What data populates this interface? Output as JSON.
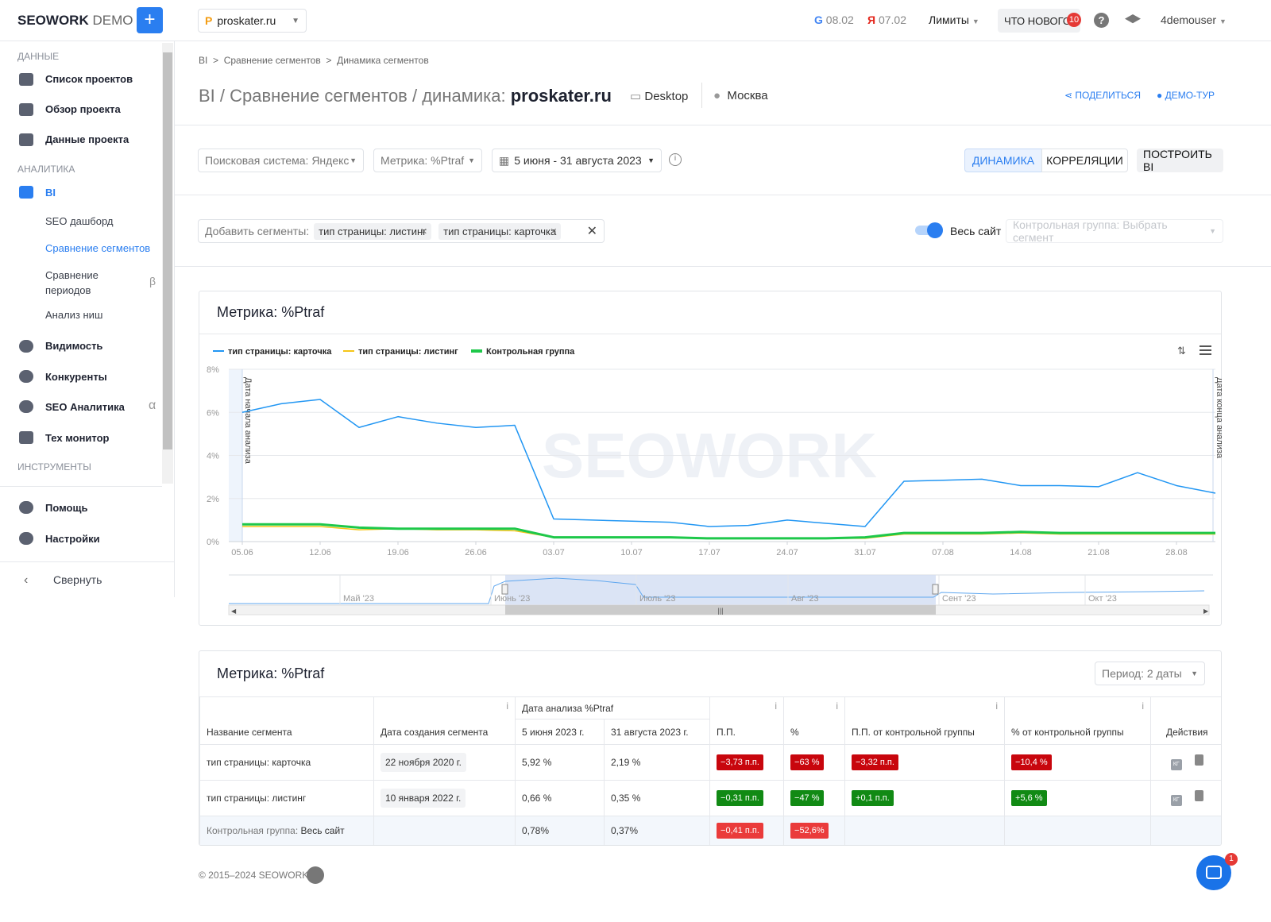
{
  "topbar": {
    "logo": "SEOWORK",
    "logo_suffix": "DEMO",
    "project": "proskater.ru",
    "google_date": "08.02",
    "yandex_date": "07.02",
    "limits": "Лимиты",
    "whats_new": "ЧТО НОВОГО",
    "whats_new_badge": "10",
    "user": "4demouser"
  },
  "sidebar": {
    "data_title": "ДАННЫЕ",
    "projects": "Список проектов",
    "overview": "Обзор проекта",
    "project_data": "Данные проекта",
    "analytics_title": "АНАЛИТИКА",
    "bi": "BI",
    "bi_sub": [
      "SEO дашборд",
      "Сравнение сегментов",
      "Сравнение периодов",
      "Анализ ниш"
    ],
    "beta": "β",
    "visibility": "Видимость",
    "competitors": "Конкуренты",
    "seo_analytics": "SEO Аналитика",
    "alpha": "α",
    "tech": "Тех монитор",
    "tools_title": "ИНСТРУМЕНТЫ",
    "help": "Помощь",
    "settings": "Настройки",
    "collapse": "Свернуть"
  },
  "breadcrumbs": [
    "BI",
    "Сравнение сегментов",
    "Динамика сегментов"
  ],
  "header": {
    "title": "BI / Сравнение сегментов / динамика:",
    "project": "proskater.ru",
    "device": "Desktop",
    "region": "Москва",
    "share": "ПОДЕЛИТЬСЯ",
    "tour": "ДЕМО-ТУР"
  },
  "filters": {
    "engine": "Поисковая система: Яндекс",
    "metric": "Метрика: %Ptraf",
    "period": "5 июня - 31 августа 2023",
    "tab_dynamics": "ДИНАМИКА",
    "tab_correlations": "КОРРЕЛЯЦИИ",
    "build": "ПОСТРОИТЬ BI"
  },
  "segments": {
    "label": "Добавить сегменты:",
    "chips": [
      "тип страницы: листинг",
      "тип страницы: карточка"
    ],
    "whole_site": "Весь сайт",
    "control_placeholder": "Контрольная группа: Выбрать сегмент"
  },
  "chart_card": {
    "title": "Метрика: %Ptraf"
  },
  "chart_data": {
    "type": "line",
    "categories": [
      "05.06",
      null,
      "12.06",
      null,
      "19.06",
      null,
      "26.06",
      null,
      "03.07",
      null,
      "10.07",
      null,
      "17.07",
      null,
      "24.07",
      null,
      "31.07",
      null,
      "07.08",
      null,
      "14.08",
      null,
      "21.08",
      null,
      "28.08",
      null
    ],
    "series": [
      {
        "name": "тип страницы: карточка",
        "color": "#2196f3",
        "values": [
          6.0,
          6.4,
          6.6,
          5.3,
          5.8,
          5.5,
          5.3,
          5.4,
          1.05,
          1.0,
          0.95,
          0.9,
          0.7,
          0.75,
          1.0,
          0.85,
          0.7,
          2.8,
          2.85,
          2.9,
          2.6,
          2.6,
          2.55,
          3.2,
          2.6,
          2.25
        ]
      },
      {
        "name": "тип страницы: листинг",
        "color": "#f5c518",
        "values": [
          0.7,
          0.7,
          0.7,
          0.55,
          0.6,
          0.55,
          0.55,
          0.5,
          0.2,
          0.2,
          0.2,
          0.2,
          0.15,
          0.15,
          0.15,
          0.15,
          0.15,
          0.35,
          0.35,
          0.35,
          0.4,
          0.35,
          0.35,
          0.35,
          0.35,
          0.35
        ]
      },
      {
        "name": "Контрольная группа",
        "color": "#1ec84a",
        "values": [
          0.8,
          0.8,
          0.8,
          0.65,
          0.6,
          0.6,
          0.6,
          0.6,
          0.2,
          0.2,
          0.2,
          0.2,
          0.15,
          0.15,
          0.15,
          0.15,
          0.2,
          0.4,
          0.4,
          0.4,
          0.45,
          0.4,
          0.4,
          0.4,
          0.4,
          0.4
        ]
      }
    ],
    "ylim": [
      0,
      8
    ],
    "yticks": [
      {
        "value": 0,
        "label": "0%"
      },
      {
        "value": 2,
        "label": "2%"
      },
      {
        "value": 4,
        "label": "4%"
      },
      {
        "value": 6,
        "label": "6%"
      },
      {
        "value": 8,
        "label": "8%"
      }
    ],
    "grid": true,
    "annotations": [
      "Дата начала анализа",
      "Дата конца анализа"
    ],
    "watermark": "SEOWORK",
    "navigator_labels": [
      "Май '23",
      "Июнь '23",
      "Июль '23",
      "Авг '23",
      "Сент '23",
      "Окт '23"
    ]
  },
  "table_card": {
    "title": "Метрика: %Ptraf",
    "period": "Период: 2 даты",
    "columns": {
      "name": "Название сегмента",
      "created": "Дата создания сегмента",
      "analysis": "Дата анализа %Ptraf",
      "start": "5 июня 2023 г.",
      "end": "31 августа 2023 г.",
      "pp": "П.П.",
      "pct": "%",
      "pp_control": "П.П. от контрольной группы",
      "pct_control": "% от контрольной группы",
      "actions": "Действия"
    },
    "info": "i",
    "action": "КГ",
    "rows": [
      {
        "name": "тип страницы: карточка",
        "created": "22 ноября 2020 г.",
        "start": "5,92 %",
        "end": "2,19 %",
        "pp": "−3,73 п.п.",
        "pct": "−63 %",
        "pp_control": "−3,32 п.п.",
        "pct_control": "−10,4 %"
      },
      {
        "name": "тип страницы: листинг",
        "created": "10 января 2022 г.",
        "start": "0,66 %",
        "end": "0,35 %",
        "pp": "−0,31 п.п.",
        "pct": "−47 %",
        "pp_control": "+0,1 п.п.",
        "pct_control": "+5,6 %"
      }
    ],
    "control_row": {
      "label": "Контрольная группа:",
      "segment": "Весь сайт",
      "start": "0,78%",
      "end": "0,37%",
      "pp": "−0,41 п.п.",
      "pct": "−52,6%"
    }
  },
  "footer": {
    "copyright": "© 2015–2024 SEOWORK",
    "chat_badge": "1"
  }
}
